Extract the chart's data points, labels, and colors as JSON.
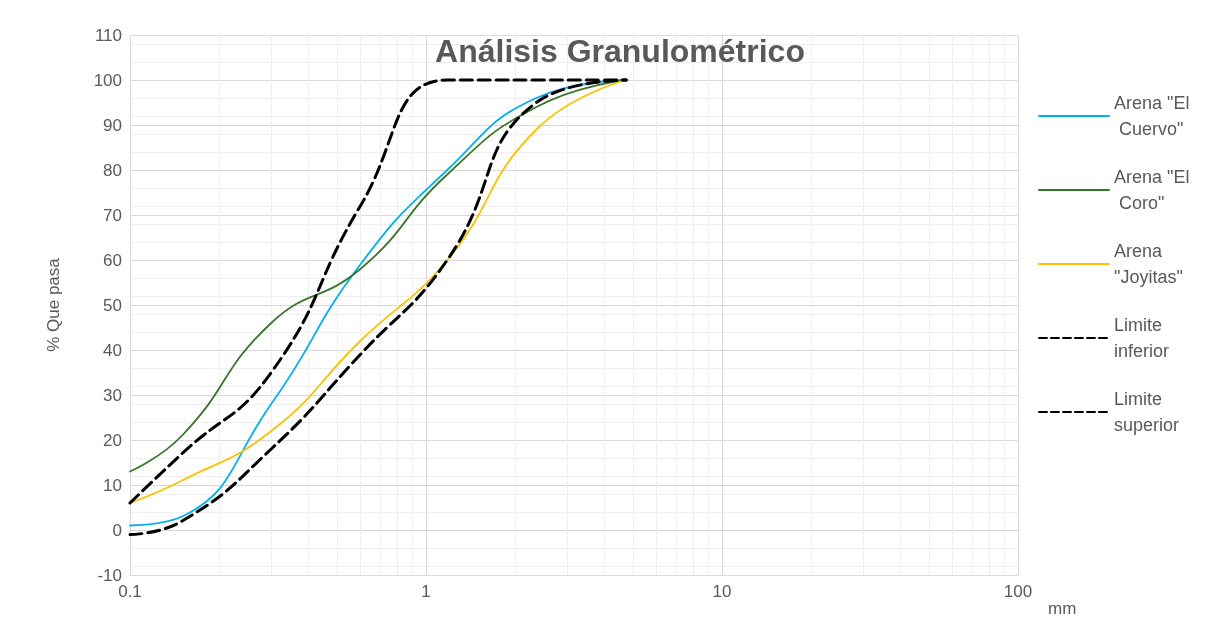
{
  "chart_data": {
    "type": "line",
    "title": "Análisis Granulométrico",
    "xlabel": "mm",
    "ylabel": "% Que pasa",
    "x": [
      0.1,
      0.15,
      0.3,
      0.6,
      1.18,
      2.36,
      4.75
    ],
    "series": [
      {
        "name": "Arena \"El Cuervo\"",
        "color": "#00b0f0",
        "values": [
          1,
          3,
          28,
          59,
          80,
          96,
          100
        ]
      },
      {
        "name": "Arena \"El Coro\"",
        "color": "#38762a",
        "values": [
          13,
          21,
          46,
          58,
          79,
          94,
          100
        ]
      },
      {
        "name": "Arena \"Joyitas\"",
        "color": "#ffc000",
        "values": [
          6,
          11,
          22,
          42,
          60,
          89,
          100
        ]
      },
      {
        "name": "Limite inferior",
        "color": "#000000",
        "line_style": "dashed",
        "values": [
          -1,
          2,
          18,
          39,
          60,
          95,
          100
        ]
      },
      {
        "name": "Limite superior",
        "color": "#000000",
        "line_style": "dashed",
        "values": [
          6,
          17,
          35,
          72,
          100,
          100,
          100
        ]
      }
    ],
    "log": "x",
    "xlim": [
      0.1,
      100
    ],
    "xticks": [
      0.1,
      1,
      10,
      100
    ],
    "ylim": [
      -10,
      110
    ],
    "yticks": [
      -10,
      0,
      10,
      20,
      30,
      40,
      50,
      60,
      70,
      80,
      90,
      100,
      110
    ],
    "grid": true,
    "legend": "right",
    "marker": "none",
    "line_style": "solid"
  }
}
